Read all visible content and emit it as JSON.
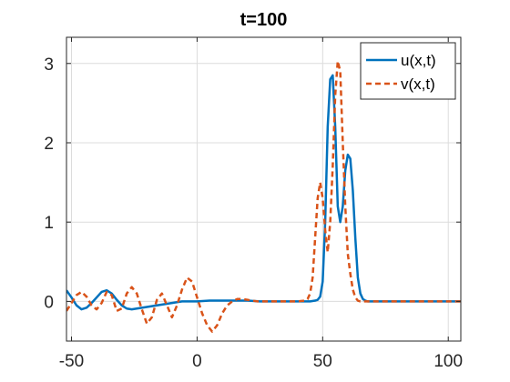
{
  "chart_data": {
    "type": "line",
    "title": "t=100",
    "xlabel": "",
    "ylabel": "",
    "xlim": [
      -52,
      105
    ],
    "ylim": [
      -0.5,
      3.33
    ],
    "xticks": [
      -50,
      0,
      50,
      100
    ],
    "xtick_labels": [
      "-50",
      "0",
      "50",
      "100"
    ],
    "yticks": [
      0,
      1,
      2,
      3
    ],
    "ytick_labels": [
      "0",
      "1",
      "2",
      "3"
    ],
    "grid": true,
    "legend_position": "top-right",
    "series": [
      {
        "name": "u(x,t)",
        "style": "solid",
        "color": "#0072BD",
        "x": [
          -52,
          -50,
          -48,
          -46,
          -44,
          -42,
          -40,
          -38,
          -36,
          -34,
          -32,
          -30,
          -28,
          -26,
          -24,
          -22,
          -20,
          -18,
          -16,
          -14,
          -12,
          -10,
          -8,
          -6,
          -4,
          -2,
          0,
          5,
          10,
          15,
          20,
          25,
          30,
          35,
          40,
          43,
          45,
          47,
          48,
          49,
          50,
          51,
          52,
          53,
          54,
          55,
          56,
          57,
          58,
          59,
          60,
          61,
          62,
          63,
          64,
          65,
          66,
          67,
          68,
          70,
          75,
          80,
          90,
          100,
          105
        ],
        "y": [
          0.14,
          0.05,
          -0.05,
          -0.1,
          -0.08,
          -0.02,
          0.05,
          0.12,
          0.14,
          0.1,
          0.02,
          -0.05,
          -0.09,
          -0.1,
          -0.09,
          -0.08,
          -0.07,
          -0.06,
          -0.05,
          -0.04,
          -0.03,
          -0.02,
          -0.01,
          0.0,
          0.0,
          0.0,
          0.0,
          0.01,
          0.01,
          0.01,
          0.01,
          0.0,
          0.0,
          0.0,
          0.0,
          0.0,
          0.0,
          0.01,
          0.02,
          0.06,
          0.25,
          1.0,
          2.2,
          2.8,
          2.85,
          2.2,
          1.2,
          1.0,
          1.2,
          1.65,
          1.85,
          1.8,
          1.4,
          0.8,
          0.3,
          0.1,
          0.03,
          0.01,
          0.0,
          0.0,
          0.0,
          0.0,
          0.0,
          0.0,
          0.0
        ]
      },
      {
        "name": "v(x,t)",
        "style": "dashed",
        "color": "#D95319",
        "x": [
          -52,
          -50,
          -48,
          -46,
          -44,
          -42,
          -40,
          -38,
          -36,
          -34,
          -32,
          -30,
          -28,
          -26,
          -24,
          -22,
          -20,
          -18,
          -16,
          -14,
          -12,
          -10,
          -8,
          -6,
          -4,
          -2,
          0,
          2,
          4,
          6,
          8,
          10,
          12,
          14,
          16,
          18,
          20,
          22,
          24,
          26,
          28,
          30,
          35,
          40,
          43,
          44,
          45,
          46,
          47,
          48,
          49,
          50,
          51,
          52,
          53,
          54,
          55,
          56,
          57,
          58,
          59,
          60,
          61,
          62,
          63,
          64,
          65,
          70,
          80,
          90,
          100,
          105
        ],
        "y": [
          -0.12,
          -0.02,
          0.08,
          0.12,
          0.06,
          -0.05,
          -0.1,
          -0.02,
          0.12,
          0.08,
          -0.12,
          -0.09,
          0.1,
          0.18,
          0.1,
          -0.1,
          -0.28,
          -0.2,
          0.02,
          0.1,
          -0.05,
          -0.2,
          -0.05,
          0.15,
          0.3,
          0.25,
          0.05,
          -0.15,
          -0.3,
          -0.38,
          -0.3,
          -0.15,
          -0.05,
          0.0,
          0.03,
          0.03,
          0.02,
          0.01,
          0.0,
          0.0,
          0.0,
          0.0,
          0.0,
          0.0,
          0.01,
          0.03,
          0.1,
          0.3,
          0.8,
          1.3,
          1.5,
          1.3,
          0.9,
          0.62,
          1.0,
          1.7,
          2.6,
          3.03,
          2.9,
          2.0,
          1.2,
          0.6,
          0.35,
          0.15,
          0.05,
          0.01,
          0.0,
          0.0,
          0.0,
          0.0,
          0.0,
          0.0
        ]
      }
    ]
  }
}
